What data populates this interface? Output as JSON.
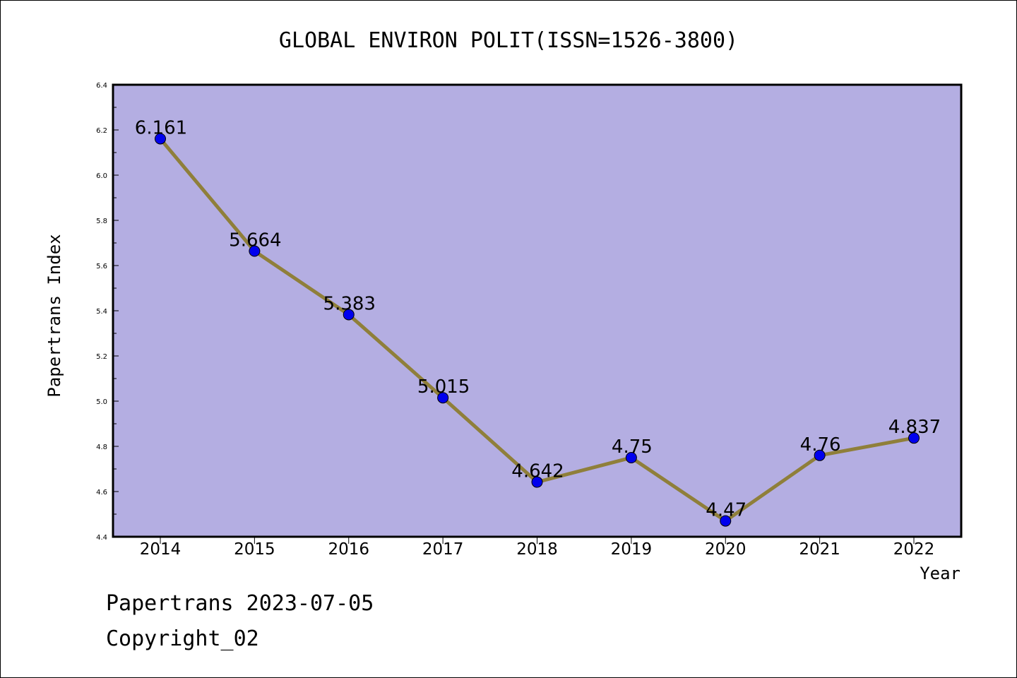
{
  "chart_data": {
    "type": "line",
    "title": "GLOBAL ENVIRON POLIT(ISSN=1526-3800)",
    "xlabel": "Year",
    "ylabel": "Papertrans Index",
    "x": [
      "2014",
      "2015",
      "2016",
      "2017",
      "2018",
      "2019",
      "2020",
      "2021",
      "2022"
    ],
    "series": [
      {
        "values": [
          6.161,
          5.664,
          5.383,
          5.015,
          4.642,
          4.75,
          4.47,
          4.76,
          4.837
        ]
      }
    ],
    "data_labels": [
      "6.161",
      "5.664",
      "5.383",
      "5.015",
      "4.642",
      "4.75",
      "4.47",
      "4.76",
      "4.837"
    ],
    "ylim": [
      4.4,
      6.4
    ],
    "yticks": [
      "4.4",
      "4.6",
      "4.8",
      "5.0",
      "5.2",
      "5.4",
      "5.6",
      "5.8",
      "6.0",
      "6.2",
      "6.4"
    ],
    "grid": false,
    "legend": "none",
    "colors": {
      "plot_background": "#b4aee2",
      "line": "#8f7f3a",
      "marker": "#0000ee"
    }
  },
  "footer": {
    "date_line": "Papertrans 2023-07-05",
    "copyright": "Copyright_02"
  }
}
